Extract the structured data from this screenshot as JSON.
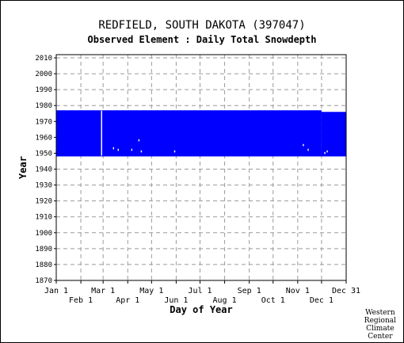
{
  "chart_data": {
    "type": "scatter",
    "title": "REDFIELD, SOUTH DAKOTA   (397047)",
    "subtitle": "Observed Element : Daily Total Snowdepth",
    "xlabel": "Day of Year",
    "ylabel": "Year",
    "ylim": [
      1870,
      2012
    ],
    "xlim": [
      1,
      366
    ],
    "grid": true,
    "yticks": [
      1870,
      1880,
      1890,
      1900,
      1910,
      1920,
      1930,
      1940,
      1950,
      1960,
      1970,
      1980,
      1990,
      2000,
      2010
    ],
    "xticks_upper": [
      {
        "label": "Jan 1",
        "day": 1
      },
      {
        "label": "Mar 1",
        "day": 60
      },
      {
        "label": "May 1",
        "day": 121
      },
      {
        "label": "Jul 1",
        "day": 182
      },
      {
        "label": "Sep 1",
        "day": 244
      },
      {
        "label": "Nov 1",
        "day": 305
      },
      {
        "label": "Dec 31",
        "day": 366
      }
    ],
    "xticks_lower": [
      {
        "label": "Feb 1",
        "day": 32
      },
      {
        "label": "Apr 1",
        "day": 91
      },
      {
        "label": "Jun 1",
        "day": 152
      },
      {
        "label": "Aug 1",
        "day": 213
      },
      {
        "label": "Oct 1",
        "day": 274
      },
      {
        "label": "Dec 1",
        "day": 335
      }
    ],
    "series": [
      {
        "color": "#0000ff",
        "observed_blocks": [
          {
            "day_start": 1,
            "day_end": 335,
            "year_start": 1948,
            "year_end": 1977
          },
          {
            "day_start": 335,
            "day_end": 366,
            "year_start": 1948,
            "year_end": 1976
          }
        ],
        "missing_points": [
          {
            "day": 58,
            "year": 1949
          },
          {
            "day": 58,
            "year": 1950
          },
          {
            "day": 58,
            "year": 1951
          },
          {
            "day": 58,
            "year": 1952
          },
          {
            "day": 58,
            "year": 1953
          },
          {
            "day": 58,
            "year": 1954
          },
          {
            "day": 58,
            "year": 1955
          },
          {
            "day": 58,
            "year": 1956
          },
          {
            "day": 58,
            "year": 1957
          },
          {
            "day": 58,
            "year": 1958
          },
          {
            "day": 58,
            "year": 1959
          },
          {
            "day": 58,
            "year": 1960
          },
          {
            "day": 58,
            "year": 1961
          },
          {
            "day": 58,
            "year": 1962
          },
          {
            "day": 58,
            "year": 1963
          },
          {
            "day": 58,
            "year": 1964
          },
          {
            "day": 58,
            "year": 1965
          },
          {
            "day": 58,
            "year": 1966
          },
          {
            "day": 58,
            "year": 1967
          },
          {
            "day": 58,
            "year": 1968
          },
          {
            "day": 58,
            "year": 1969
          },
          {
            "day": 58,
            "year": 1970
          },
          {
            "day": 58,
            "year": 1971
          },
          {
            "day": 58,
            "year": 1972
          },
          {
            "day": 58,
            "year": 1973
          },
          {
            "day": 58,
            "year": 1974
          },
          {
            "day": 58,
            "year": 1975
          },
          {
            "day": 58,
            "year": 1976
          },
          {
            "day": 73,
            "year": 1953
          },
          {
            "day": 79,
            "year": 1952
          },
          {
            "day": 96,
            "year": 1952
          },
          {
            "day": 105,
            "year": 1958
          },
          {
            "day": 108,
            "year": 1951
          },
          {
            "day": 150,
            "year": 1951
          },
          {
            "day": 312,
            "year": 1955
          },
          {
            "day": 318,
            "year": 1952
          },
          {
            "day": 339,
            "year": 1950
          },
          {
            "day": 342,
            "year": 1951
          }
        ]
      }
    ]
  },
  "credit": [
    "Western",
    "Regional",
    "Climate",
    "Center"
  ]
}
